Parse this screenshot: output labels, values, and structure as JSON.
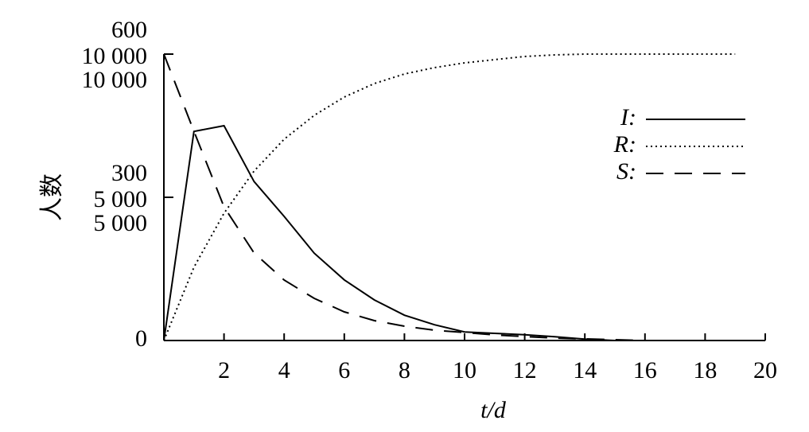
{
  "chart_data": {
    "type": "line",
    "y_label": "人数",
    "x_label": "t/d",
    "x": [
      0,
      1,
      2,
      3,
      4,
      5,
      6,
      7,
      8,
      9,
      10,
      11,
      12,
      13,
      14,
      15,
      16,
      17,
      18,
      19,
      20
    ],
    "xlim": [
      0,
      20
    ],
    "xticks": [
      2,
      4,
      6,
      8,
      10,
      12,
      14,
      16,
      18,
      20
    ],
    "ylim": [
      0,
      10000
    ],
    "yticks": [
      0,
      {
        "value": 5000,
        "label": "5 000"
      },
      {
        "value": 10000,
        "label": "10 000"
      }
    ],
    "y2lim": [
      0,
      600
    ],
    "y2ticks": [
      300,
      600
    ],
    "y3lim": [
      0,
      10000
    ],
    "y3ticks": [
      {
        "value": 5000,
        "label": "5 000"
      },
      {
        "value": 10000,
        "label": "10 000"
      }
    ],
    "series": [
      {
        "name": "I:",
        "color": "#000000",
        "style": "solid",
        "axis": "y2",
        "values": [
          0,
          438,
          450,
          333,
          260,
          183,
          127,
          85,
          53,
          33,
          18,
          15,
          12,
          8,
          3,
          0,
          0,
          0,
          0,
          0,
          0
        ]
      },
      {
        "name": "R:",
        "color": "#000000",
        "style": "dotted",
        "values": [
          0,
          2556,
          4444,
          5917,
          7028,
          7861,
          8500,
          8972,
          9306,
          9528,
          9694,
          9806,
          9917,
          9972,
          10000,
          10000,
          10000,
          10000,
          10000,
          10000,
          null
        ]
      },
      {
        "name": "S:",
        "color": "#000000",
        "style": "dashed",
        "axis": "y3",
        "values": [
          10000,
          7306,
          4667,
          3056,
          2111,
          1472,
          1000,
          694,
          500,
          361,
          278,
          194,
          139,
          83,
          56,
          28,
          0,
          0,
          0,
          0,
          0
        ]
      }
    ]
  }
}
